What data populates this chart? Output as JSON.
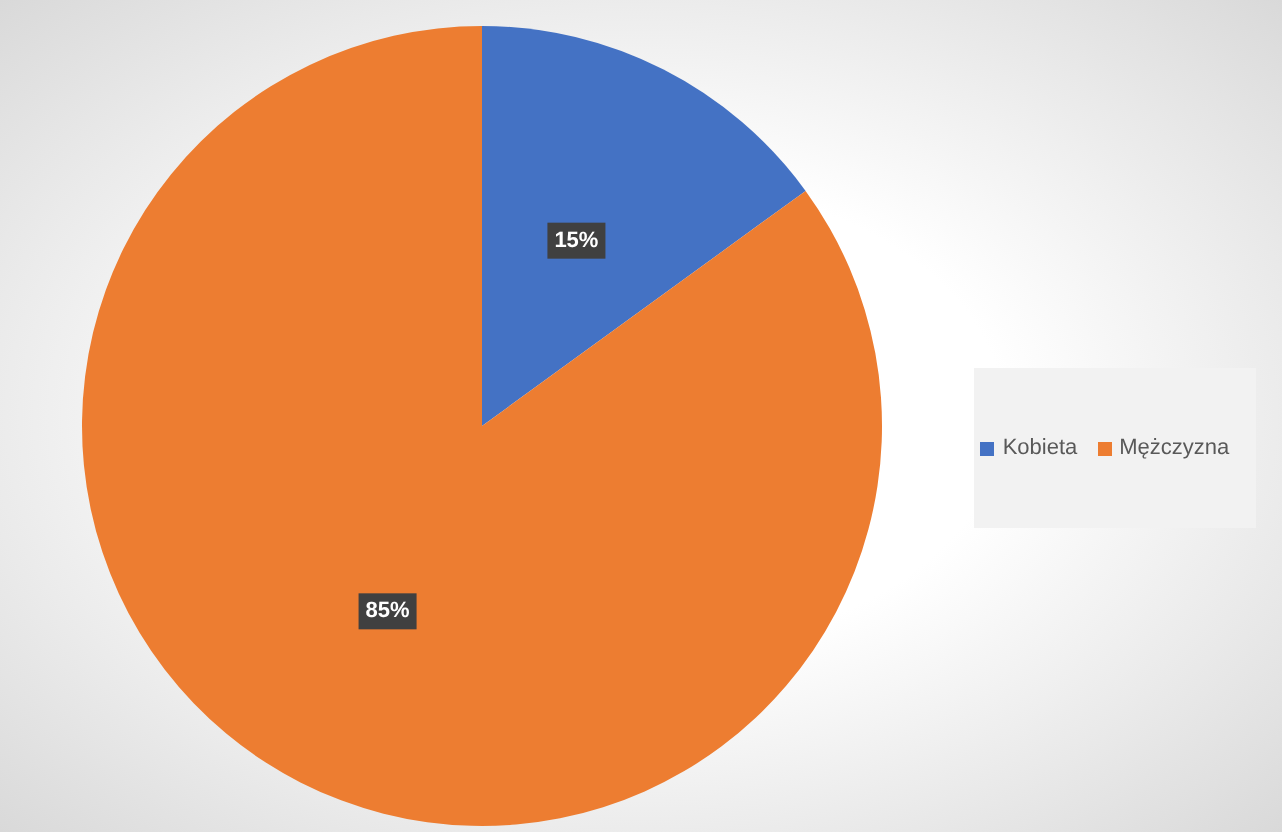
{
  "chart_data": {
    "type": "pie",
    "categories": [
      "Kobieta",
      "Mężczyzna"
    ],
    "values": [
      15,
      85
    ],
    "colors": [
      "#4472c4",
      "#ed7d31"
    ],
    "value_labels": [
      "15%",
      "85%"
    ],
    "legend": "right"
  }
}
